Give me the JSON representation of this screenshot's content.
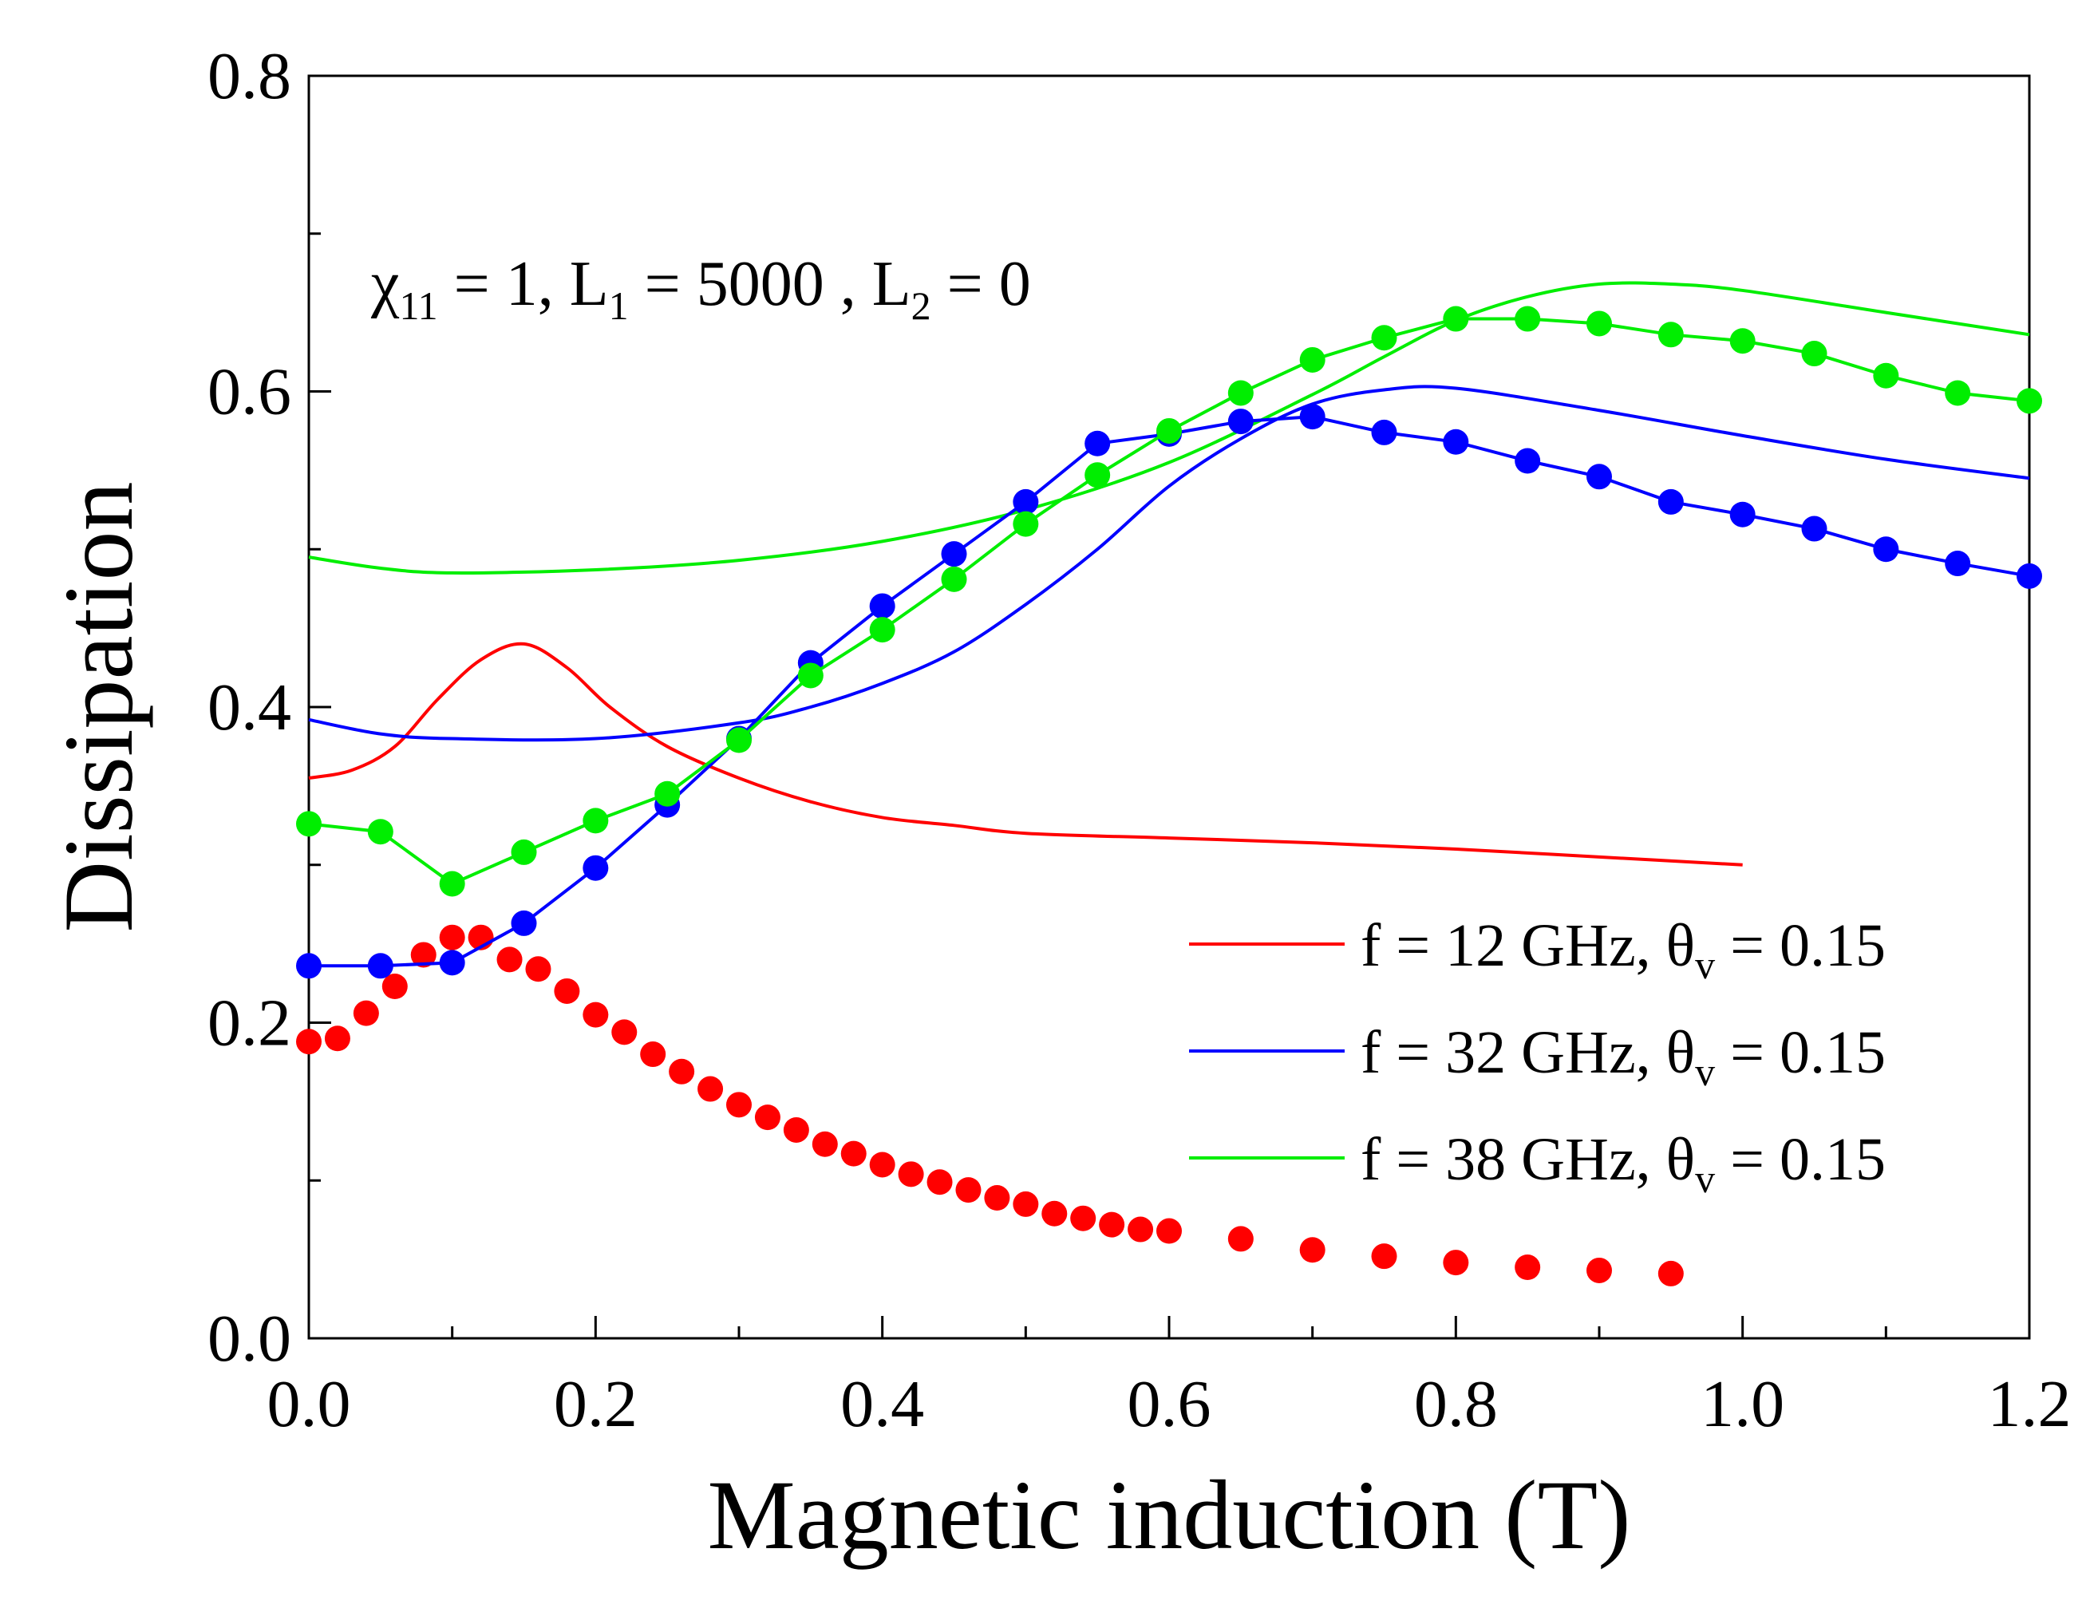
{
  "chart_data": {
    "type": "line",
    "xlabel": "Magnetic induction (T)",
    "ylabel": "Dissipation",
    "xlim": [
      0.0,
      1.2
    ],
    "ylim": [
      0.0,
      0.8
    ],
    "xticks": [
      "0.0",
      "0.2",
      "0.4",
      "0.6",
      "0.8",
      "1.0",
      "1.2"
    ],
    "yticks": [
      "0.0",
      "0.2",
      "0.4",
      "0.6",
      "0.8"
    ],
    "annotation": {
      "chi": "χ",
      "chi_sub": "11",
      "part1": " = 1, L",
      "L1_sub": "1",
      "part2": " = 5000 , L",
      "L2_sub": "2",
      "part3": " = 0"
    },
    "legend": [
      {
        "label_pre": "f = 12 GHz, θ",
        "label_sub": "v",
        "label_post": " = 0.15",
        "color": "#ff0000"
      },
      {
        "label_pre": "f = 32 GHz, θ",
        "label_sub": "v",
        "label_post": " = 0.15",
        "color": "#0000ff"
      },
      {
        "label_pre": "f = 38 GHz, θ",
        "label_sub": "v",
        "label_post": " = 0.15",
        "color": "#00ee00"
      }
    ],
    "series": [
      {
        "name": "f = 12 GHz theory",
        "kind": "line",
        "color": "#ff0000",
        "x": [
          0.0,
          0.03,
          0.06,
          0.09,
          0.12,
          0.15,
          0.18,
          0.21,
          0.25,
          0.3,
          0.35,
          0.4,
          0.45,
          0.5,
          0.6,
          0.7,
          0.8,
          0.9,
          1.0
        ],
        "y": [
          0.355,
          0.36,
          0.375,
          0.405,
          0.43,
          0.44,
          0.425,
          0.4,
          0.375,
          0.355,
          0.34,
          0.33,
          0.325,
          0.32,
          0.317,
          0.314,
          0.31,
          0.305,
          0.3
        ]
      },
      {
        "name": "f = 32 GHz theory",
        "kind": "line",
        "color": "#0000ff",
        "x": [
          0.0,
          0.05,
          0.1,
          0.2,
          0.3,
          0.35,
          0.4,
          0.45,
          0.5,
          0.55,
          0.6,
          0.65,
          0.7,
          0.75,
          0.8,
          0.9,
          1.0,
          1.1,
          1.2
        ],
        "y": [
          0.392,
          0.383,
          0.38,
          0.38,
          0.39,
          0.4,
          0.415,
          0.435,
          0.465,
          0.5,
          0.54,
          0.57,
          0.592,
          0.601,
          0.602,
          0.588,
          0.572,
          0.557,
          0.545
        ]
      },
      {
        "name": "f = 38 GHz theory",
        "kind": "line",
        "color": "#00ee00",
        "x": [
          0.0,
          0.05,
          0.1,
          0.2,
          0.3,
          0.4,
          0.5,
          0.6,
          0.7,
          0.75,
          0.8,
          0.85,
          0.9,
          0.95,
          1.0,
          1.1,
          1.2
        ],
        "y": [
          0.495,
          0.488,
          0.485,
          0.487,
          0.493,
          0.505,
          0.525,
          0.555,
          0.598,
          0.622,
          0.645,
          0.66,
          0.668,
          0.668,
          0.664,
          0.65,
          0.636
        ]
      },
      {
        "name": "f = 12 GHz experiment",
        "kind": "dots",
        "color": "#ff0000",
        "x": [
          0.0,
          0.02,
          0.04,
          0.06,
          0.08,
          0.1,
          0.12,
          0.14,
          0.16,
          0.18,
          0.2,
          0.22,
          0.24,
          0.26,
          0.28,
          0.3,
          0.32,
          0.34,
          0.36,
          0.38,
          0.4,
          0.42,
          0.44,
          0.46,
          0.48,
          0.5,
          0.52,
          0.54,
          0.56,
          0.58,
          0.6,
          0.65,
          0.7,
          0.75,
          0.8,
          0.85,
          0.9,
          0.95
        ],
        "y": [
          0.188,
          0.19,
          0.206,
          0.223,
          0.243,
          0.254,
          0.254,
          0.24,
          0.234,
          0.22,
          0.205,
          0.194,
          0.18,
          0.169,
          0.158,
          0.148,
          0.14,
          0.132,
          0.123,
          0.117,
          0.11,
          0.104,
          0.099,
          0.094,
          0.089,
          0.085,
          0.079,
          0.076,
          0.072,
          0.069,
          0.068,
          0.063,
          0.056,
          0.052,
          0.048,
          0.045,
          0.043,
          0.041
        ]
      },
      {
        "name": "f = 32 GHz experiment",
        "kind": "dotline",
        "color": "#0000ff",
        "x": [
          0.0,
          0.05,
          0.1,
          0.15,
          0.2,
          0.25,
          0.3,
          0.35,
          0.4,
          0.45,
          0.5,
          0.55,
          0.6,
          0.65,
          0.7,
          0.75,
          0.8,
          0.85,
          0.9,
          0.95,
          1.0,
          1.05,
          1.1,
          1.15,
          1.2
        ],
        "y": [
          0.236,
          0.236,
          0.238,
          0.263,
          0.298,
          0.338,
          0.38,
          0.428,
          0.464,
          0.497,
          0.53,
          0.567,
          0.573,
          0.581,
          0.584,
          0.574,
          0.568,
          0.556,
          0.546,
          0.53,
          0.522,
          0.513,
          0.5,
          0.491,
          0.483
        ]
      },
      {
        "name": "f = 38 GHz experiment",
        "kind": "dotline",
        "color": "#00ee00",
        "x": [
          0.0,
          0.05,
          0.1,
          0.15,
          0.2,
          0.25,
          0.3,
          0.35,
          0.4,
          0.45,
          0.5,
          0.55,
          0.6,
          0.65,
          0.7,
          0.75,
          0.8,
          0.85,
          0.9,
          0.95,
          1.0,
          1.05,
          1.1,
          1.15,
          1.2
        ],
        "y": [
          0.326,
          0.321,
          0.288,
          0.308,
          0.328,
          0.345,
          0.379,
          0.42,
          0.449,
          0.481,
          0.516,
          0.547,
          0.575,
          0.599,
          0.62,
          0.634,
          0.646,
          0.646,
          0.643,
          0.636,
          0.632,
          0.624,
          0.61,
          0.599,
          0.594
        ]
      }
    ]
  }
}
